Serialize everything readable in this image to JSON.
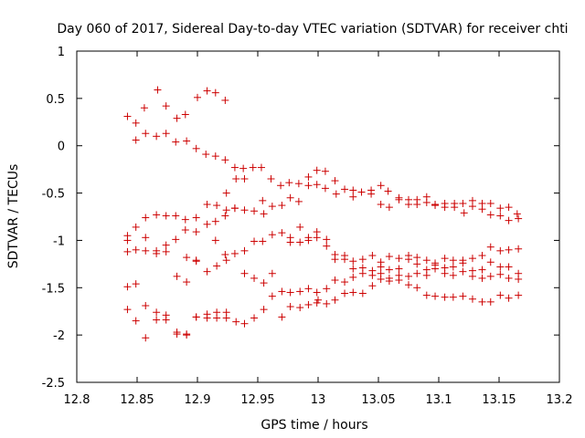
{
  "chart_data": {
    "type": "scatter",
    "title": "Day 060 of 2017, Sidereal Day-to-day VTEC variation (SDTVAR) for receiver chti",
    "xlabel": "GPS time / hours",
    "ylabel": "SDTVAR / TECUs",
    "xlim": [
      12.8,
      13.2
    ],
    "ylim": [
      -2.5,
      1
    ],
    "xticks": [
      "12.8",
      "12.85",
      "12.9",
      "12.95",
      "13",
      "13.05",
      "13.1",
      "13.15",
      "13.2"
    ],
    "yticks": [
      "1",
      "0.5",
      "0",
      "-0.5",
      "-1",
      "-1.5",
      "-2",
      "-2.5"
    ],
    "grid": false,
    "marker": "+",
    "color": "#cc0000",
    "series": [
      {
        "name": "chti",
        "points": [
          [
            12.842,
            0.31
          ],
          [
            12.849,
            0.24
          ],
          [
            12.856,
            0.4
          ],
          [
            12.867,
            0.59
          ],
          [
            12.874,
            0.42
          ],
          [
            12.883,
            0.29
          ],
          [
            12.89,
            0.33
          ],
          [
            12.9,
            0.51
          ],
          [
            12.908,
            0.58
          ],
          [
            12.915,
            0.56
          ],
          [
            12.923,
            0.48
          ],
          [
            12.849,
            0.06
          ],
          [
            12.857,
            0.13
          ],
          [
            12.866,
            0.1
          ],
          [
            12.874,
            0.13
          ],
          [
            12.882,
            0.04
          ],
          [
            12.891,
            0.05
          ],
          [
            12.899,
            -0.03
          ],
          [
            12.907,
            -0.09
          ],
          [
            12.915,
            -0.11
          ],
          [
            12.923,
            -0.15
          ],
          [
            12.931,
            -0.23
          ],
          [
            12.938,
            -0.24
          ],
          [
            12.946,
            -0.23
          ],
          [
            12.953,
            -0.23
          ],
          [
            12.932,
            -0.35
          ],
          [
            12.939,
            -0.35
          ],
          [
            12.961,
            -0.35
          ],
          [
            12.969,
            -0.42
          ],
          [
            12.976,
            -0.39
          ],
          [
            12.984,
            -0.4
          ],
          [
            12.992,
            -0.33
          ],
          [
            12.999,
            -0.26
          ],
          [
            13.006,
            -0.27
          ],
          [
            13.014,
            -0.37
          ],
          [
            12.992,
            -0.42
          ],
          [
            12.999,
            -0.41
          ],
          [
            13.006,
            -0.45
          ],
          [
            13.015,
            -0.51
          ],
          [
            13.022,
            -0.46
          ],
          [
            13.029,
            -0.47
          ],
          [
            13.036,
            -0.49
          ],
          [
            13.044,
            -0.47
          ],
          [
            13.052,
            -0.42
          ],
          [
            13.058,
            -0.48
          ],
          [
            13.067,
            -0.55
          ],
          [
            13.075,
            -0.57
          ],
          [
            13.082,
            -0.57
          ],
          [
            13.09,
            -0.54
          ],
          [
            13.097,
            -0.62
          ],
          [
            13.105,
            -0.61
          ],
          [
            13.113,
            -0.61
          ],
          [
            13.12,
            -0.61
          ],
          [
            13.128,
            -0.58
          ],
          [
            13.136,
            -0.61
          ],
          [
            13.143,
            -0.61
          ],
          [
            13.151,
            -0.66
          ],
          [
            13.158,
            -0.65
          ],
          [
            13.165,
            -0.72
          ],
          [
            12.924,
            -0.5
          ],
          [
            12.908,
            -0.62
          ],
          [
            12.916,
            -0.63
          ],
          [
            12.924,
            -0.68
          ],
          [
            12.931,
            -0.66
          ],
          [
            12.939,
            -0.68
          ],
          [
            12.947,
            -0.69
          ],
          [
            12.955,
            -0.72
          ],
          [
            12.954,
            -0.58
          ],
          [
            12.962,
            -0.64
          ],
          [
            12.97,
            -0.63
          ],
          [
            12.977,
            -0.55
          ],
          [
            12.984,
            -0.59
          ],
          [
            13.029,
            -0.54
          ],
          [
            13.044,
            -0.51
          ],
          [
            13.052,
            -0.62
          ],
          [
            13.059,
            -0.65
          ],
          [
            13.067,
            -0.57
          ],
          [
            13.075,
            -0.62
          ],
          [
            13.082,
            -0.62
          ],
          [
            13.09,
            -0.6
          ],
          [
            13.097,
            -0.63
          ],
          [
            13.105,
            -0.65
          ],
          [
            13.113,
            -0.65
          ],
          [
            13.121,
            -0.71
          ],
          [
            13.128,
            -0.64
          ],
          [
            13.136,
            -0.67
          ],
          [
            13.143,
            -0.73
          ],
          [
            13.151,
            -0.74
          ],
          [
            13.158,
            -0.79
          ],
          [
            13.166,
            -0.77
          ],
          [
            12.842,
            -0.95
          ],
          [
            12.842,
            -1.0
          ],
          [
            12.849,
            -0.86
          ],
          [
            12.857,
            -0.76
          ],
          [
            12.866,
            -0.73
          ],
          [
            12.874,
            -0.74
          ],
          [
            12.882,
            -0.74
          ],
          [
            12.89,
            -0.78
          ],
          [
            12.899,
            -0.76
          ],
          [
            12.908,
            -0.83
          ],
          [
            12.89,
            -0.89
          ],
          [
            12.899,
            -0.91
          ],
          [
            12.915,
            -0.8
          ],
          [
            12.923,
            -0.74
          ],
          [
            12.931,
            -0.66
          ],
          [
            12.842,
            -1.12
          ],
          [
            12.849,
            -1.1
          ],
          [
            12.857,
            -0.97
          ],
          [
            12.857,
            -1.11
          ],
          [
            12.866,
            -1.11
          ],
          [
            12.866,
            -1.14
          ],
          [
            12.874,
            -1.12
          ],
          [
            12.874,
            -1.05
          ],
          [
            12.882,
            -0.99
          ],
          [
            12.891,
            -1.18
          ],
          [
            12.899,
            -1.21
          ],
          [
            12.915,
            -1.0
          ],
          [
            12.923,
            -1.15
          ],
          [
            12.931,
            -1.14
          ],
          [
            12.939,
            -1.11
          ],
          [
            12.947,
            -1.01
          ],
          [
            12.954,
            -1.01
          ],
          [
            12.962,
            -0.94
          ],
          [
            12.97,
            -0.92
          ],
          [
            12.977,
            -0.97
          ],
          [
            12.985,
            -0.86
          ],
          [
            12.992,
            -0.97
          ],
          [
            12.999,
            -0.91
          ],
          [
            13.007,
            -0.99
          ],
          [
            12.977,
            -1.02
          ],
          [
            12.985,
            -1.02
          ],
          [
            12.992,
            -1.0
          ],
          [
            12.999,
            -0.97
          ],
          [
            13.014,
            -1.15
          ],
          [
            13.022,
            -1.16
          ],
          [
            13.029,
            -1.22
          ],
          [
            13.037,
            -1.2
          ],
          [
            13.045,
            -1.16
          ],
          [
            13.052,
            -1.23
          ],
          [
            13.059,
            -1.17
          ],
          [
            13.067,
            -1.19
          ],
          [
            13.075,
            -1.16
          ],
          [
            13.082,
            -1.18
          ],
          [
            13.09,
            -1.21
          ],
          [
            13.097,
            -1.24
          ],
          [
            13.105,
            -1.19
          ],
          [
            13.112,
            -1.21
          ],
          [
            13.12,
            -1.21
          ],
          [
            13.128,
            -1.19
          ],
          [
            13.136,
            -1.16
          ],
          [
            13.143,
            -1.07
          ],
          [
            13.151,
            -1.11
          ],
          [
            13.158,
            -1.1
          ],
          [
            13.166,
            -1.09
          ],
          [
            12.842,
            -1.49
          ],
          [
            12.849,
            -1.46
          ],
          [
            12.883,
            -1.38
          ],
          [
            12.891,
            -1.44
          ],
          [
            12.899,
            -1.22
          ],
          [
            12.908,
            -1.33
          ],
          [
            12.916,
            -1.27
          ],
          [
            12.924,
            -1.21
          ],
          [
            12.939,
            -1.35
          ],
          [
            12.947,
            -1.4
          ],
          [
            12.955,
            -1.45
          ],
          [
            12.962,
            -1.35
          ],
          [
            12.97,
            -1.54
          ],
          [
            12.977,
            -1.55
          ],
          [
            12.985,
            -1.54
          ],
          [
            12.992,
            -1.51
          ],
          [
            12.999,
            -1.55
          ],
          [
            13.007,
            -1.06
          ],
          [
            13.014,
            -1.2
          ],
          [
            13.022,
            -1.2
          ],
          [
            13.029,
            -1.3
          ],
          [
            13.037,
            -1.29
          ],
          [
            13.045,
            -1.32
          ],
          [
            13.052,
            -1.28
          ],
          [
            13.059,
            -1.31
          ],
          [
            13.067,
            -1.3
          ],
          [
            13.075,
            -1.2
          ],
          [
            13.082,
            -1.25
          ],
          [
            13.09,
            -1.31
          ],
          [
            13.097,
            -1.26
          ],
          [
            13.105,
            -1.29
          ],
          [
            13.112,
            -1.28
          ],
          [
            13.12,
            -1.24
          ],
          [
            13.128,
            -1.32
          ],
          [
            13.136,
            -1.31
          ],
          [
            13.143,
            -1.23
          ],
          [
            13.151,
            -1.28
          ],
          [
            13.158,
            -1.28
          ],
          [
            13.166,
            -1.35
          ],
          [
            12.999,
            -1.66
          ],
          [
            13.007,
            -1.51
          ],
          [
            13.014,
            -1.42
          ],
          [
            13.022,
            -1.44
          ],
          [
            13.029,
            -1.39
          ],
          [
            13.037,
            -1.35
          ],
          [
            13.045,
            -1.37
          ],
          [
            13.052,
            -1.35
          ],
          [
            13.059,
            -1.4
          ],
          [
            13.067,
            -1.37
          ],
          [
            13.075,
            -1.38
          ],
          [
            13.082,
            -1.35
          ],
          [
            13.09,
            -1.37
          ],
          [
            13.097,
            -1.3
          ],
          [
            13.105,
            -1.35
          ],
          [
            13.112,
            -1.37
          ],
          [
            13.12,
            -1.33
          ],
          [
            13.128,
            -1.38
          ],
          [
            13.136,
            -1.4
          ],
          [
            13.143,
            -1.38
          ],
          [
            13.151,
            -1.36
          ],
          [
            13.158,
            -1.4
          ],
          [
            13.166,
            -1.41
          ],
          [
            12.842,
            -1.73
          ],
          [
            12.849,
            -1.85
          ],
          [
            12.857,
            -1.69
          ],
          [
            12.866,
            -1.76
          ],
          [
            12.866,
            -1.84
          ],
          [
            12.874,
            -1.79
          ],
          [
            12.874,
            -1.84
          ],
          [
            12.883,
            -1.97
          ],
          [
            12.891,
            -1.99
          ],
          [
            12.899,
            -1.81
          ],
          [
            12.908,
            -1.78
          ],
          [
            12.916,
            -1.76
          ],
          [
            12.924,
            -1.76
          ],
          [
            12.908,
            -1.82
          ],
          [
            12.916,
            -1.82
          ],
          [
            12.924,
            -1.82
          ],
          [
            12.932,
            -1.86
          ],
          [
            12.939,
            -1.88
          ],
          [
            12.947,
            -1.82
          ],
          [
            12.955,
            -1.73
          ],
          [
            12.962,
            -1.59
          ],
          [
            12.97,
            -1.81
          ],
          [
            12.977,
            -1.7
          ],
          [
            12.985,
            -1.71
          ],
          [
            12.992,
            -1.68
          ],
          [
            13.0,
            -1.63
          ],
          [
            13.007,
            -1.67
          ],
          [
            13.014,
            -1.63
          ],
          [
            13.022,
            -1.56
          ],
          [
            13.029,
            -1.55
          ],
          [
            13.037,
            -1.56
          ],
          [
            13.045,
            -1.48
          ],
          [
            13.052,
            -1.41
          ],
          [
            13.059,
            -1.43
          ],
          [
            13.067,
            -1.42
          ],
          [
            13.075,
            -1.47
          ],
          [
            13.082,
            -1.5
          ],
          [
            13.09,
            -1.58
          ],
          [
            13.097,
            -1.59
          ],
          [
            13.105,
            -1.6
          ],
          [
            13.112,
            -1.6
          ],
          [
            13.12,
            -1.59
          ],
          [
            13.128,
            -1.62
          ],
          [
            13.136,
            -1.65
          ],
          [
            13.143,
            -1.65
          ],
          [
            13.151,
            -1.58
          ],
          [
            13.158,
            -1.61
          ],
          [
            13.166,
            -1.58
          ],
          [
            12.857,
            -2.03
          ],
          [
            12.883,
            -1.99
          ],
          [
            12.891,
            -2.0
          ],
          [
            12.899,
            -1.81
          ]
        ]
      }
    ]
  }
}
